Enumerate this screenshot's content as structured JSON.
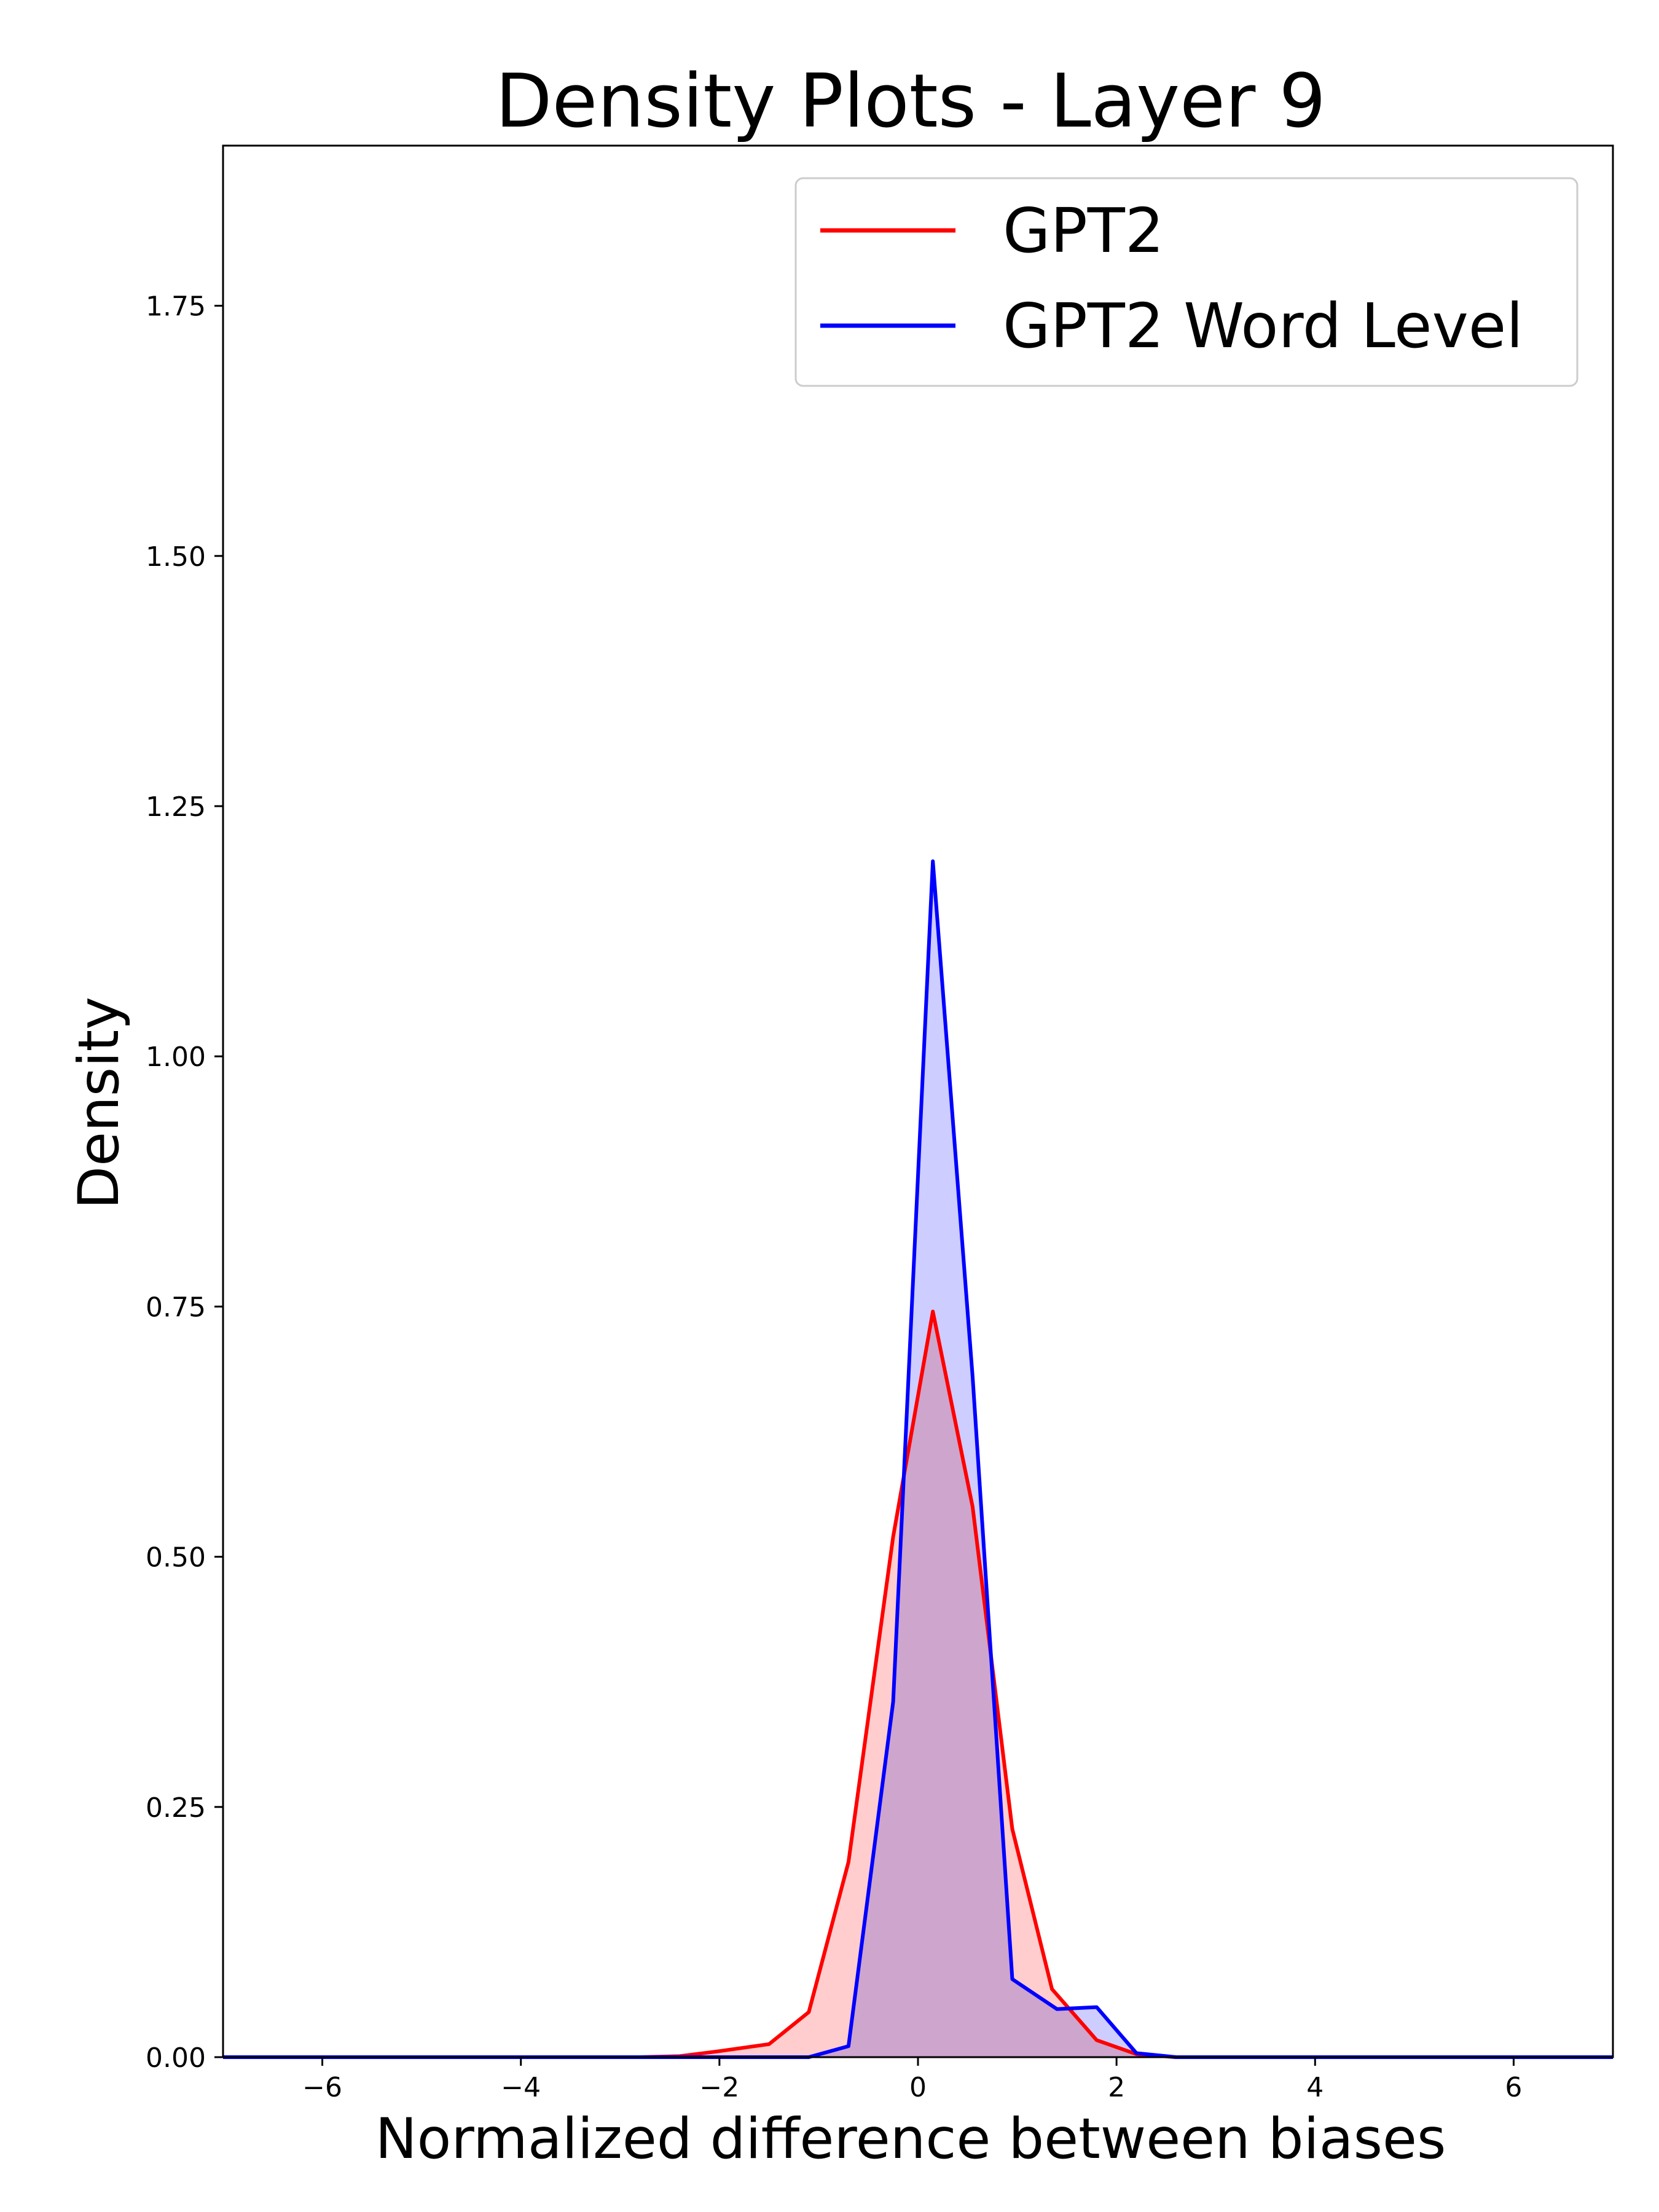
{
  "chart_data": {
    "type": "area",
    "title": "Density Plots - Layer 9",
    "xlabel": "Normalized difference between biases",
    "ylabel": "Density",
    "xlim": [
      -7,
      7
    ],
    "ylim": [
      0,
      1.91
    ],
    "xticks": [
      -6,
      -4,
      -2,
      0,
      2,
      4,
      6
    ],
    "xtick_labels": [
      "−6",
      "−4",
      "−2",
      "0",
      "2",
      "4",
      "6"
    ],
    "yticks": [
      0,
      0.25,
      0.5,
      0.75,
      1.0,
      1.25,
      1.5,
      1.75
    ],
    "ytick_labels": [
      "0.00",
      "0.25",
      "0.50",
      "0.75",
      "1.00",
      "1.25",
      "1.50",
      "1.75"
    ],
    "grid": false,
    "legend_position": "top-right",
    "series": [
      {
        "name": "GPT2",
        "color": "#ff0000",
        "fill": "#ffc8c8",
        "x": [
          -7,
          -2.8,
          -2.4,
          -2.0,
          -1.5,
          -1.1,
          -0.7,
          -0.25,
          0.15,
          0.55,
          0.95,
          1.35,
          1.8,
          2.2,
          2.6,
          7
        ],
        "y": [
          0,
          0,
          0.001,
          0.006,
          0.013,
          0.045,
          0.195,
          0.52,
          0.745,
          0.55,
          0.228,
          0.068,
          0.017,
          0.003,
          0,
          0
        ]
      },
      {
        "name": "GPT2 Word Level",
        "color": "#0000ff",
        "fill": "#c8c8ff",
        "x": [
          -7,
          -1.1,
          -0.7,
          -0.25,
          0.15,
          0.55,
          0.95,
          1.4,
          1.8,
          2.2,
          2.6,
          7
        ],
        "y": [
          0,
          0,
          0.011,
          0.355,
          1.195,
          0.68,
          0.078,
          0.048,
          0.05,
          0.004,
          0,
          0
        ]
      }
    ]
  }
}
